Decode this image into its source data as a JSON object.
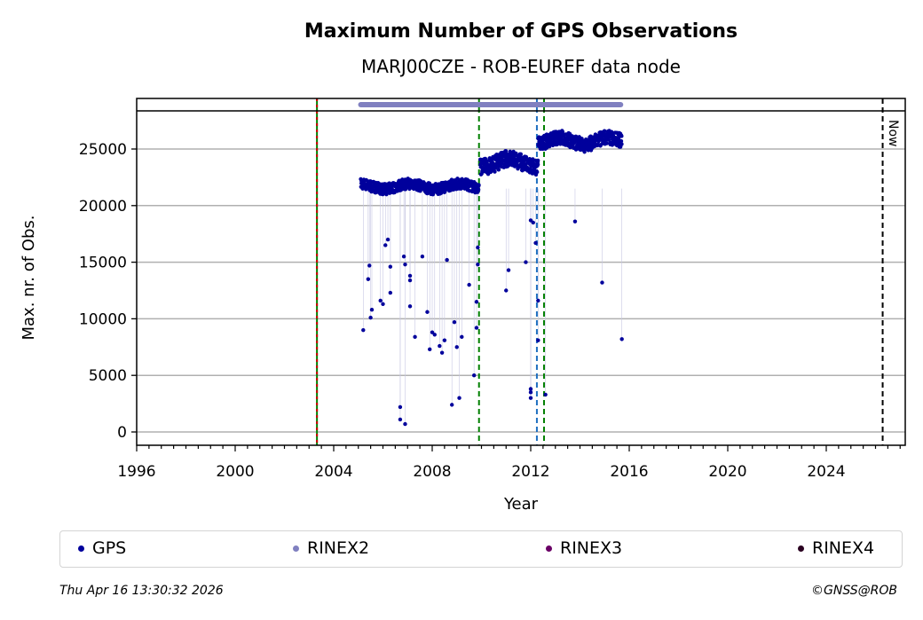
{
  "chart_data": {
    "type": "scatter",
    "title": "Maximum Number of GPS Observations",
    "subtitle": "MARJ00CZE - ROB-EUREF data node",
    "xlabel": "Year",
    "ylabel": "Max. nr. of Obs.",
    "xlim": [
      1996,
      2027.2
    ],
    "ylim": [
      -1200,
      29500
    ],
    "x_ticks": [
      "1996",
      "2000",
      "2004",
      "2008",
      "2012",
      "2016",
      "2020",
      "2024"
    ],
    "x_tick_values": [
      1996,
      2000,
      2004,
      2008,
      2012,
      2016,
      2020,
      2024
    ],
    "y_ticks": [
      "0",
      "5000",
      "10000",
      "15000",
      "20000",
      "25000"
    ],
    "y_tick_values": [
      0,
      5000,
      10000,
      15000,
      20000,
      25000
    ],
    "grid": "horizontal",
    "segments": [
      {
        "name": "GPS",
        "x_start": 2005.1,
        "x_end": 2009.9,
        "y_center": 21700,
        "y_spread": 600
      },
      {
        "name": "GPS",
        "x_start": 2009.95,
        "x_end": 2012.3,
        "y_center": 23800,
        "y_spread": 900
      },
      {
        "name": "GPS",
        "x_start": 2012.3,
        "x_end": 2015.7,
        "y_center": 25700,
        "y_spread": 800
      }
    ],
    "outliers": [
      [
        2005.2,
        9000
      ],
      [
        2005.45,
        14700
      ],
      [
        2005.55,
        10800
      ],
      [
        2005.5,
        10100
      ],
      [
        2005.4,
        13500
      ],
      [
        2005.9,
        11600
      ],
      [
        2006.0,
        11300
      ],
      [
        2006.1,
        16500
      ],
      [
        2006.2,
        17000
      ],
      [
        2006.3,
        14600
      ],
      [
        2006.3,
        12300
      ],
      [
        2006.7,
        2200
      ],
      [
        2006.7,
        1100
      ],
      [
        2006.9,
        700
      ],
      [
        2006.9,
        14800
      ],
      [
        2006.85,
        15500
      ],
      [
        2007.1,
        13800
      ],
      [
        2007.1,
        13400
      ],
      [
        2007.1,
        11100
      ],
      [
        2007.3,
        8400
      ],
      [
        2007.6,
        15500
      ],
      [
        2007.8,
        10600
      ],
      [
        2007.9,
        7300
      ],
      [
        2008.0,
        8800
      ],
      [
        2008.1,
        8600
      ],
      [
        2008.3,
        7600
      ],
      [
        2008.4,
        7000
      ],
      [
        2008.5,
        8100
      ],
      [
        2008.6,
        15200
      ],
      [
        2008.8,
        2400
      ],
      [
        2008.9,
        9700
      ],
      [
        2009.0,
        7500
      ],
      [
        2009.1,
        3000
      ],
      [
        2009.2,
        8400
      ],
      [
        2009.5,
        13000
      ],
      [
        2009.7,
        5000
      ],
      [
        2009.8,
        9200
      ],
      [
        2009.8,
        11500
      ],
      [
        2009.85,
        14800
      ],
      [
        2009.85,
        16300
      ],
      [
        2011.0,
        12500
      ],
      [
        2011.1,
        14300
      ],
      [
        2011.8,
        15000
      ],
      [
        2012.0,
        18700
      ],
      [
        2012.1,
        18500
      ],
      [
        2012.0,
        3800
      ],
      [
        2012.0,
        3500
      ],
      [
        2012.0,
        3000
      ],
      [
        2012.3,
        8100
      ],
      [
        2012.3,
        11600
      ],
      [
        2012.2,
        16700
      ],
      [
        2012.6,
        3300
      ],
      [
        2013.8,
        18600
      ],
      [
        2014.9,
        13200
      ],
      [
        2015.7,
        8200
      ]
    ],
    "rinex2_range": [
      2005.1,
      2015.65
    ],
    "vertical_markers": [
      {
        "x": 2003.32,
        "colors": [
          "#cc0000",
          "#008000"
        ]
      },
      {
        "x": 2009.9,
        "colors": [
          "#008000"
        ]
      },
      {
        "x": 2012.25,
        "colors": [
          "#1f6fc0"
        ]
      },
      {
        "x": 2012.54,
        "colors": [
          "#008000"
        ]
      },
      {
        "x": 2026.29,
        "colors": [
          "#000000"
        ],
        "label": "Now"
      }
    ],
    "legend": [
      "GPS",
      "RINEX2",
      "RINEX3",
      "RINEX4"
    ],
    "legend_placement": "bottom",
    "colors": {
      "GPS": "#00009c",
      "RINEX2": "#8080c0",
      "RINEX3": "#6a0066",
      "RINEX4": "#2a0020"
    }
  },
  "footer": {
    "timestamp": "Thu Apr 16 13:30:32 2026",
    "credit": "©GNSS@ROB"
  }
}
